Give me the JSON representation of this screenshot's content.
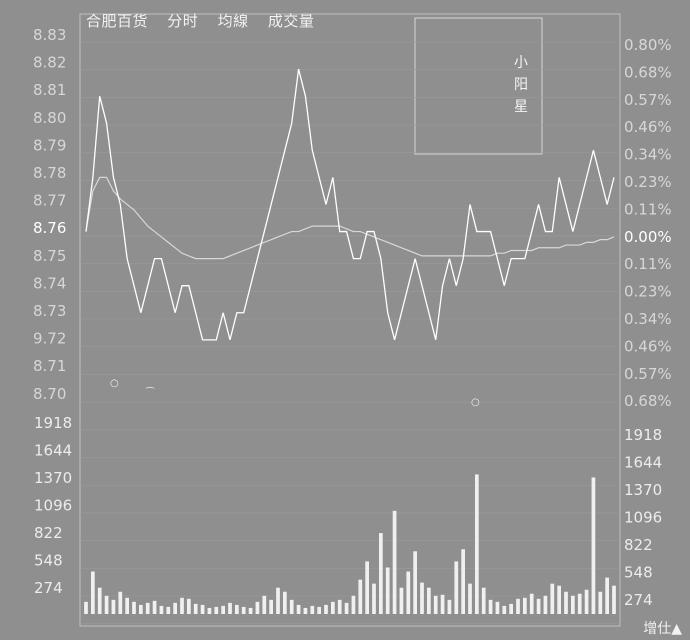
{
  "header": {
    "stock": "合肥百货",
    "view": "分时",
    "avg_line": "均線",
    "volume": "成交量"
  },
  "annotation": {
    "label": "小阳星"
  },
  "footer": {
    "action": "增仕▲"
  },
  "chart_data": {
    "type": "line",
    "left_price_ticks": [
      "8.83",
      "8.82",
      "8.81",
      "8.80",
      "8.79",
      "8.78",
      "8.77",
      "8.76",
      "8.75",
      "8.74",
      "8.73",
      "9.72",
      "8.71",
      "8.70"
    ],
    "right_pct_ticks": [
      "0.80%",
      "0.68%",
      "0.57%",
      "0.46%",
      "0.34%",
      "0.23%",
      "0.11%",
      "0.00%",
      "0.11%",
      "0.23%",
      "0.34%",
      "0.46%",
      "0.57%",
      "0.68%"
    ],
    "volume_ticks_left": [
      "1918",
      "1644",
      "1370",
      "1096",
      "822",
      "548",
      "274"
    ],
    "volume_ticks_right": [
      "1918",
      "1644",
      "1370",
      "1096",
      "822",
      "548",
      "274"
    ],
    "price_series": [
      8.76,
      8.78,
      8.81,
      8.8,
      8.78,
      8.77,
      8.75,
      8.74,
      8.73,
      8.74,
      8.75,
      8.75,
      8.74,
      8.73,
      8.74,
      8.74,
      8.73,
      8.72,
      8.72,
      8.72,
      8.73,
      8.72,
      8.73,
      8.73,
      8.74,
      8.75,
      8.76,
      8.77,
      8.78,
      8.79,
      8.8,
      8.82,
      8.81,
      8.79,
      8.78,
      8.77,
      8.78,
      8.76,
      8.76,
      8.75,
      8.75,
      8.76,
      8.76,
      8.75,
      8.73,
      8.72,
      8.73,
      8.74,
      8.75,
      8.74,
      8.73,
      8.72,
      8.74,
      8.75,
      8.74,
      8.75,
      8.77,
      8.76,
      8.76,
      8.76,
      8.75,
      8.74,
      8.75,
      8.75,
      8.75,
      8.76,
      8.77,
      8.76,
      8.76,
      8.78,
      8.77,
      8.76,
      8.77,
      8.78,
      8.79,
      8.78,
      8.77,
      8.78
    ],
    "avg_series": [
      8.76,
      8.775,
      8.78,
      8.78,
      8.775,
      8.772,
      8.77,
      8.768,
      8.765,
      8.762,
      8.76,
      8.758,
      8.756,
      8.754,
      8.752,
      8.751,
      8.75,
      8.75,
      8.75,
      8.75,
      8.75,
      8.751,
      8.752,
      8.753,
      8.754,
      8.755,
      8.756,
      8.757,
      8.758,
      8.759,
      8.76,
      8.76,
      8.761,
      8.762,
      8.762,
      8.762,
      8.762,
      8.762,
      8.761,
      8.76,
      8.76,
      8.759,
      8.758,
      8.757,
      8.756,
      8.755,
      8.754,
      8.753,
      8.752,
      8.751,
      8.751,
      8.751,
      8.751,
      8.751,
      8.751,
      8.751,
      8.751,
      8.751,
      8.751,
      8.751,
      8.752,
      8.752,
      8.753,
      8.753,
      8.753,
      8.753,
      8.754,
      8.754,
      8.754,
      8.754,
      8.755,
      8.755,
      8.755,
      8.756,
      8.756,
      8.757,
      8.757,
      8.758
    ],
    "volume_series": [
      120,
      420,
      260,
      180,
      140,
      220,
      160,
      120,
      90,
      110,
      130,
      80,
      70,
      110,
      160,
      150,
      100,
      90,
      60,
      70,
      80,
      110,
      90,
      70,
      60,
      120,
      180,
      140,
      260,
      220,
      140,
      90,
      60,
      80,
      70,
      90,
      120,
      140,
      110,
      180,
      340,
      520,
      300,
      800,
      460,
      1020,
      260,
      420,
      620,
      310,
      260,
      180,
      190,
      140,
      520,
      640,
      300,
      1380,
      260,
      140,
      120,
      80,
      100,
      150,
      160,
      200,
      150,
      180,
      300,
      280,
      220,
      180,
      200,
      240,
      1350,
      220,
      360,
      280
    ]
  }
}
